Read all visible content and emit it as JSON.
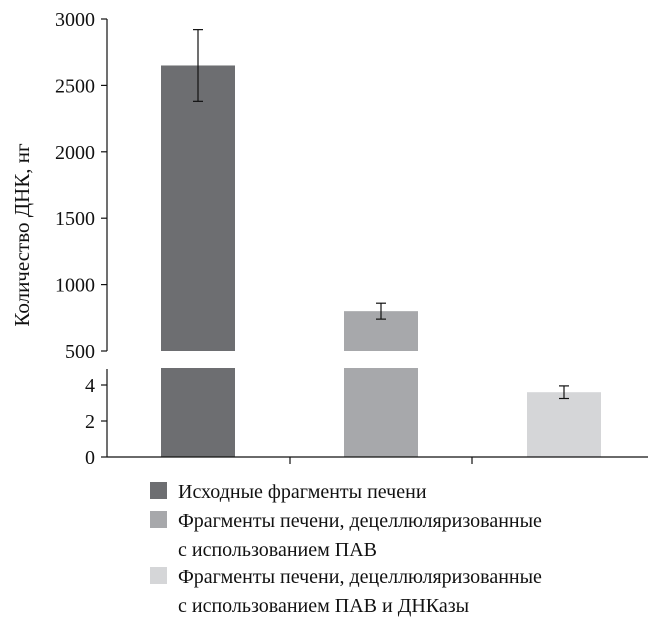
{
  "chart_data": {
    "type": "bar",
    "ylabel": "Количество ДНК, нг",
    "y_axis_break": true,
    "y_ticks_upper": [
      500,
      1000,
      1500,
      2000,
      2500,
      3000
    ],
    "y_ticks_lower": [
      0,
      2,
      4
    ],
    "ylim_upper": [
      500,
      3000
    ],
    "ylim_lower": [
      0,
      5
    ],
    "grid": false,
    "legend_position": "bottom",
    "categories": [
      "Исходные фрагменты печени",
      "Фрагменты печени, децеллюляризованные с использованием ПАВ",
      "Фрагменты печени, децеллюляризованные с использованием ПАВ и ДНКазы"
    ],
    "values": [
      2650,
      800,
      3.6
    ],
    "errors": [
      270,
      60,
      0.35
    ],
    "colors": [
      "#6d6e71",
      "#a7a8ab",
      "#d5d6d8"
    ],
    "legend": [
      {
        "lines": [
          "Исходные фрагменты печени"
        ],
        "color": "#6d6e71"
      },
      {
        "lines": [
          "Фрагменты печени, децеллюляризованные",
          "с использованием ПАВ"
        ],
        "color": "#a7a8ab"
      },
      {
        "lines": [
          "Фрагменты печени, децеллюляризованные",
          "с использованием ПАВ и ДНКазы"
        ],
        "color": "#d5d6d8"
      }
    ]
  }
}
